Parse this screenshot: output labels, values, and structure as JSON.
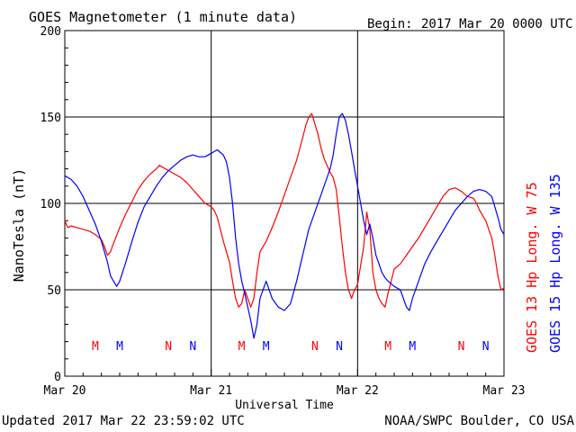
{
  "header": {
    "title": "GOES Magnetometer (1 minute data)",
    "begin_label": "Begin:",
    "begin_value": "2017 Mar 20 0000 UTC"
  },
  "footer": {
    "updated": "Updated 2017 Mar 22 23:59:02 UTC",
    "credit": "NOAA/SWPC Boulder, CO USA"
  },
  "colors": {
    "goes13": "#ff0000",
    "goes15": "#0000ff",
    "grid": "#000000"
  },
  "chart_data": {
    "type": "line",
    "title": "GOES Magnetometer (1 minute data)",
    "xlabel": "Universal Time",
    "ylabel": "NanoTesla (nT)",
    "ylim": [
      0,
      200
    ],
    "xlim": [
      0,
      72
    ],
    "x_unit": "hours since 2017 Mar 20 0000 UTC",
    "yticks": [
      0,
      50,
      100,
      150,
      200
    ],
    "xticks": [
      {
        "x": 0,
        "label": "Mar 20"
      },
      {
        "x": 24,
        "label": "Mar 21"
      },
      {
        "x": 48,
        "label": "Mar 22"
      },
      {
        "x": 72,
        "label": "Mar 23"
      }
    ],
    "grid": true,
    "series": [
      {
        "name": "GOES 13 Hp  Long. W 75",
        "color": "#ff0000",
        "points": [
          [
            0,
            90
          ],
          [
            0.5,
            86
          ],
          [
            1,
            87
          ],
          [
            2,
            86
          ],
          [
            3,
            85
          ],
          [
            4,
            84
          ],
          [
            5,
            82
          ],
          [
            6,
            79
          ],
          [
            6.5,
            75
          ],
          [
            7,
            70
          ],
          [
            7.5,
            72
          ],
          [
            8,
            77
          ],
          [
            9,
            86
          ],
          [
            10,
            94
          ],
          [
            11,
            101
          ],
          [
            12,
            108
          ],
          [
            13,
            113
          ],
          [
            14,
            117
          ],
          [
            15,
            120
          ],
          [
            15.5,
            122
          ],
          [
            16,
            121
          ],
          [
            17,
            119
          ],
          [
            18,
            117
          ],
          [
            19,
            115
          ],
          [
            20,
            112
          ],
          [
            21,
            108
          ],
          [
            22,
            104
          ],
          [
            23,
            100
          ],
          [
            24,
            98
          ],
          [
            24.5,
            96
          ],
          [
            25,
            92
          ],
          [
            26,
            78
          ],
          [
            27,
            66
          ],
          [
            27.5,
            55
          ],
          [
            28,
            45
          ],
          [
            28.5,
            40
          ],
          [
            29,
            42
          ],
          [
            29.5,
            50
          ],
          [
            30,
            45
          ],
          [
            30.5,
            40
          ],
          [
            31,
            45
          ],
          [
            31.5,
            60
          ],
          [
            32,
            72
          ],
          [
            33,
            78
          ],
          [
            34,
            86
          ],
          [
            35,
            95
          ],
          [
            36,
            105
          ],
          [
            37,
            115
          ],
          [
            38,
            125
          ],
          [
            39,
            138
          ],
          [
            39.5,
            145
          ],
          [
            40,
            150
          ],
          [
            40.5,
            152
          ],
          [
            41,
            146
          ],
          [
            41.5,
            140
          ],
          [
            42,
            132
          ],
          [
            42.5,
            126
          ],
          [
            43,
            122
          ],
          [
            43.5,
            118
          ],
          [
            44,
            115
          ],
          [
            44.5,
            108
          ],
          [
            45,
            92
          ],
          [
            45.5,
            75
          ],
          [
            46,
            60
          ],
          [
            46.5,
            50
          ],
          [
            47,
            45
          ],
          [
            47.5,
            50
          ],
          [
            48,
            53
          ],
          [
            49,
            75
          ],
          [
            49.5,
            95
          ],
          [
            50,
            85
          ],
          [
            50.5,
            60
          ],
          [
            51,
            50
          ],
          [
            51.5,
            45
          ],
          [
            52,
            42
          ],
          [
            52.5,
            40
          ],
          [
            53,
            48
          ],
          [
            53.5,
            55
          ],
          [
            54,
            62
          ],
          [
            55,
            65
          ],
          [
            56,
            70
          ],
          [
            57,
            75
          ],
          [
            58,
            80
          ],
          [
            59,
            86
          ],
          [
            60,
            92
          ],
          [
            61,
            98
          ],
          [
            62,
            104
          ],
          [
            63,
            108
          ],
          [
            64,
            109
          ],
          [
            65,
            107
          ],
          [
            66,
            104
          ],
          [
            67,
            103
          ],
          [
            67.5,
            100
          ],
          [
            68,
            96
          ],
          [
            69,
            90
          ],
          [
            70,
            80
          ],
          [
            70.5,
            70
          ],
          [
            71,
            58
          ],
          [
            71.5,
            50
          ],
          [
            72,
            51
          ]
        ]
      },
      {
        "name": "GOES 15 Hp  Long. W 135",
        "color": "#0000ff",
        "points": [
          [
            0,
            116
          ],
          [
            1,
            114
          ],
          [
            2,
            110
          ],
          [
            3,
            104
          ],
          [
            4,
            96
          ],
          [
            5,
            88
          ],
          [
            6,
            78
          ],
          [
            7,
            66
          ],
          [
            7.5,
            58
          ],
          [
            8,
            55
          ],
          [
            8.5,
            52
          ],
          [
            9,
            55
          ],
          [
            10,
            66
          ],
          [
            11,
            78
          ],
          [
            12,
            89
          ],
          [
            13,
            98
          ],
          [
            14,
            104
          ],
          [
            15,
            110
          ],
          [
            16,
            115
          ],
          [
            17,
            119
          ],
          [
            18,
            122
          ],
          [
            19,
            125
          ],
          [
            20,
            127
          ],
          [
            21,
            128
          ],
          [
            22,
            127
          ],
          [
            23,
            127
          ],
          [
            24,
            129
          ],
          [
            25,
            131
          ],
          [
            26,
            128
          ],
          [
            26.5,
            124
          ],
          [
            27,
            115
          ],
          [
            27.5,
            100
          ],
          [
            28,
            80
          ],
          [
            28.5,
            65
          ],
          [
            29,
            55
          ],
          [
            29.5,
            48
          ],
          [
            30,
            40
          ],
          [
            30.5,
            32
          ],
          [
            31,
            22
          ],
          [
            31.5,
            30
          ],
          [
            32,
            45
          ],
          [
            33,
            55
          ],
          [
            34,
            45
          ],
          [
            35,
            40
          ],
          [
            36,
            38
          ],
          [
            37,
            42
          ],
          [
            38,
            55
          ],
          [
            39,
            70
          ],
          [
            40,
            85
          ],
          [
            41,
            95
          ],
          [
            42,
            105
          ],
          [
            43,
            115
          ],
          [
            43.5,
            120
          ],
          [
            44,
            128
          ],
          [
            44.5,
            140
          ],
          [
            45,
            150
          ],
          [
            45.5,
            152
          ],
          [
            46,
            148
          ],
          [
            46.5,
            140
          ],
          [
            47,
            130
          ],
          [
            47.5,
            120
          ],
          [
            48,
            110
          ],
          [
            48.5,
            100
          ],
          [
            49,
            90
          ],
          [
            49.5,
            82
          ],
          [
            50,
            88
          ],
          [
            50.5,
            80
          ],
          [
            51,
            70
          ],
          [
            51.5,
            65
          ],
          [
            52,
            60
          ],
          [
            52.5,
            57
          ],
          [
            53,
            55
          ],
          [
            54,
            52
          ],
          [
            55,
            50
          ],
          [
            55.5,
            45
          ],
          [
            56,
            40
          ],
          [
            56.5,
            38
          ],
          [
            57,
            45
          ],
          [
            58,
            55
          ],
          [
            59,
            65
          ],
          [
            60,
            72
          ],
          [
            61,
            78
          ],
          [
            62,
            84
          ],
          [
            63,
            90
          ],
          [
            64,
            96
          ],
          [
            65,
            100
          ],
          [
            66,
            104
          ],
          [
            67,
            107
          ],
          [
            68,
            108
          ],
          [
            69,
            107
          ],
          [
            70,
            104
          ],
          [
            70.5,
            98
          ],
          [
            71,
            92
          ],
          [
            71.5,
            85
          ],
          [
            72,
            82
          ]
        ]
      }
    ],
    "event_markers": [
      {
        "x": 5,
        "label": "M",
        "color": "#ff0000"
      },
      {
        "x": 9,
        "label": "M",
        "color": "#0000ff"
      },
      {
        "x": 17,
        "label": "N",
        "color": "#ff0000"
      },
      {
        "x": 21,
        "label": "N",
        "color": "#0000ff"
      },
      {
        "x": 29,
        "label": "M",
        "color": "#ff0000"
      },
      {
        "x": 33,
        "label": "M",
        "color": "#0000ff"
      },
      {
        "x": 41,
        "label": "N",
        "color": "#ff0000"
      },
      {
        "x": 45,
        "label": "N",
        "color": "#0000ff"
      },
      {
        "x": 53,
        "label": "M",
        "color": "#ff0000"
      },
      {
        "x": 57,
        "label": "M",
        "color": "#0000ff"
      },
      {
        "x": 65,
        "label": "N",
        "color": "#ff0000"
      },
      {
        "x": 69,
        "label": "N",
        "color": "#0000ff"
      }
    ]
  }
}
